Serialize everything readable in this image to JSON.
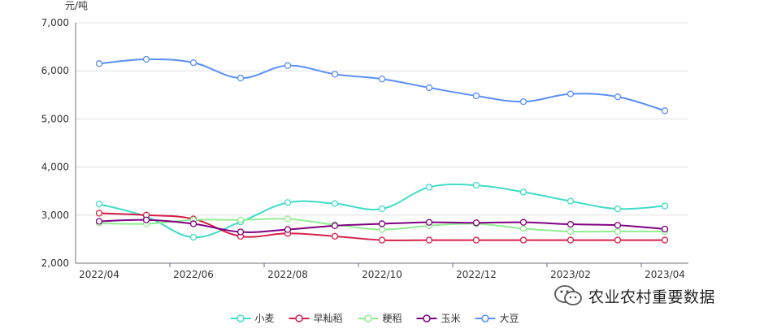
{
  "chart_data": {
    "type": "line",
    "y_unit": "元/吨",
    "ylim": [
      2000,
      7000
    ],
    "y_ticks": [
      2000,
      3000,
      4000,
      5000,
      6000,
      7000
    ],
    "y_tick_labels": [
      "2,000",
      "3,000",
      "4,000",
      "5,000",
      "6,000",
      "7,000"
    ],
    "x": [
      "2022/04",
      "2022/05",
      "2022/06",
      "2022/07",
      "2022/08",
      "2022/09",
      "2022/10",
      "2022/11",
      "2022/12",
      "2023/01",
      "2023/02",
      "2023/03",
      "2023/04"
    ],
    "x_tick_labels": [
      "2022/04",
      "2022/06",
      "2022/08",
      "2022/10",
      "2022/12",
      "2023/02",
      "2023/04"
    ],
    "grid": "horizontal",
    "legend_position": "bottom-center",
    "series": [
      {
        "name": "小麦",
        "color": "#40dcc8",
        "values": [
          3230,
          2970,
          2540,
          2860,
          3260,
          3240,
          3130,
          3580,
          3620,
          3480,
          3290,
          3130,
          3190
        ]
      },
      {
        "name": "早籼稻",
        "color": "#d81e4a",
        "values": [
          3040,
          3000,
          2920,
          2560,
          2620,
          2560,
          2480,
          2480,
          2480,
          2480,
          2480,
          2480,
          2480
        ]
      },
      {
        "name": "粳稻",
        "color": "#90ee90",
        "values": [
          2830,
          2820,
          2900,
          2900,
          2920,
          2800,
          2700,
          2780,
          2820,
          2720,
          2660,
          2660,
          2660
        ]
      },
      {
        "name": "玉米",
        "color": "#800080",
        "values": [
          2870,
          2900,
          2820,
          2650,
          2700,
          2780,
          2820,
          2850,
          2840,
          2850,
          2810,
          2790,
          2710
        ]
      },
      {
        "name": "大豆",
        "color": "#5b8ff9",
        "values": [
          6150,
          6240,
          6170,
          5850,
          6110,
          5930,
          5830,
          5650,
          5480,
          5360,
          5520,
          5460,
          5170
        ]
      }
    ]
  },
  "watermark": {
    "text": "农业农村重要数据",
    "icon": "wechat-icon"
  }
}
